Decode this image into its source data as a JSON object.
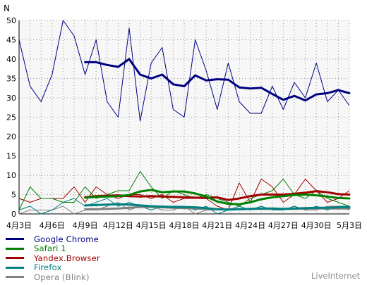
{
  "chart_data": {
    "type": "line",
    "ylabel": "N",
    "ylim": [
      0,
      50
    ],
    "yticks": [
      "0",
      "5",
      "10",
      "15",
      "20",
      "25",
      "30",
      "35",
      "40",
      "45",
      "50"
    ],
    "xticks": [
      "4月3日",
      "4月6日",
      "4月9日",
      "4月12日",
      "4月15日",
      "4月18日",
      "4月21日",
      "4月24日",
      "4月27日",
      "4月30日",
      "5月3日"
    ],
    "grid": true,
    "legend_position": "bottom-left",
    "series": [
      {
        "name": "Google Chrome",
        "color": "#000080",
        "daily": [
          45,
          33,
          29,
          36,
          50,
          46,
          36,
          45,
          29,
          25,
          48,
          24,
          39,
          43,
          27,
          25,
          45,
          37,
          27,
          39,
          29,
          26,
          26,
          33,
          27,
          34,
          30,
          39,
          29,
          32,
          28
        ],
        "average_from_day": 6,
        "average": [
          39.2,
          39.2,
          38.5,
          38.0,
          40.0,
          36.0,
          35.0,
          36.0,
          33.5,
          33.0,
          35.8,
          34.5,
          34.8,
          34.7,
          32.7,
          32.4,
          32.6,
          31.0,
          29.5,
          30.5,
          29.3,
          30.9,
          31.2,
          32.0,
          31.2
        ]
      },
      {
        "name": "Safari 1",
        "color": "#008000",
        "daily": [
          1,
          7,
          4,
          4,
          3,
          3,
          7,
          4,
          5,
          6,
          6,
          11,
          7,
          4,
          6,
          5,
          4,
          5,
          4,
          3,
          2,
          4,
          5,
          6,
          9,
          5,
          4,
          6,
          4,
          3,
          2
        ],
        "average_from_day": 6,
        "average": [
          4.2,
          4.4,
          4.5,
          4.6,
          4.9,
          5.8,
          6.2,
          5.6,
          5.8,
          5.8,
          5.3,
          4.5,
          3.2,
          2.6,
          2.5,
          3.0,
          3.8,
          4.3,
          4.6,
          4.9,
          5.0,
          4.8,
          4.5,
          4.1,
          4.0
        ]
      },
      {
        "name": "Yandex.Browser",
        "color": "#a00000",
        "daily": [
          4,
          3,
          4,
          4,
          4,
          7,
          3,
          7,
          5,
          4,
          5,
          5,
          4,
          5,
          3,
          4,
          4,
          4,
          2,
          1,
          8,
          3,
          9,
          7,
          3,
          5,
          9,
          6,
          3,
          4,
          6
        ],
        "average_from_day": 6,
        "average": [
          4.3,
          4.6,
          4.7,
          4.8,
          4.6,
          4.5,
          4.6,
          4.5,
          4.4,
          4.3,
          4.2,
          4.1,
          4.3,
          3.6,
          4.0,
          4.6,
          5.0,
          5.0,
          5.0,
          5.2,
          5.5,
          5.9,
          5.6,
          5.1,
          5.0
        ]
      },
      {
        "name": "Firefox",
        "color": "#008080",
        "daily": [
          1,
          2,
          0,
          1,
          3,
          4,
          2,
          3,
          4,
          2,
          3,
          2,
          1,
          2,
          2,
          2,
          1,
          2,
          0,
          1,
          2,
          1,
          2,
          1,
          1,
          2,
          1,
          2,
          1,
          2,
          2
        ],
        "average_from_day": 6,
        "average": [
          2.2,
          2.3,
          2.4,
          2.5,
          2.4,
          2.2,
          2.0,
          1.9,
          1.8,
          1.8,
          1.7,
          1.5,
          1.2,
          1.1,
          1.2,
          1.3,
          1.4,
          1.4,
          1.3,
          1.4,
          1.5,
          1.6,
          1.6,
          1.7,
          1.8
        ]
      },
      {
        "name": "Opera (Blink)",
        "color": "#808080",
        "daily": [
          0,
          1,
          1,
          1,
          2,
          0,
          1,
          1,
          2,
          3,
          1,
          2,
          2,
          1,
          1,
          2,
          0,
          1,
          1,
          1,
          2,
          1,
          2,
          1,
          1,
          2,
          1,
          1,
          2,
          2,
          1
        ],
        "average_from_day": 6,
        "average": [
          1.2,
          1.2,
          1.3,
          1.4,
          1.6,
          1.8,
          1.8,
          1.7,
          1.6,
          1.5,
          1.4,
          1.3,
          1.2,
          1.2,
          1.2,
          1.3,
          1.3,
          1.3,
          1.3,
          1.3,
          1.4,
          1.4,
          1.4,
          1.4,
          1.4
        ]
      }
    ]
  },
  "brand": "LiveInternet"
}
